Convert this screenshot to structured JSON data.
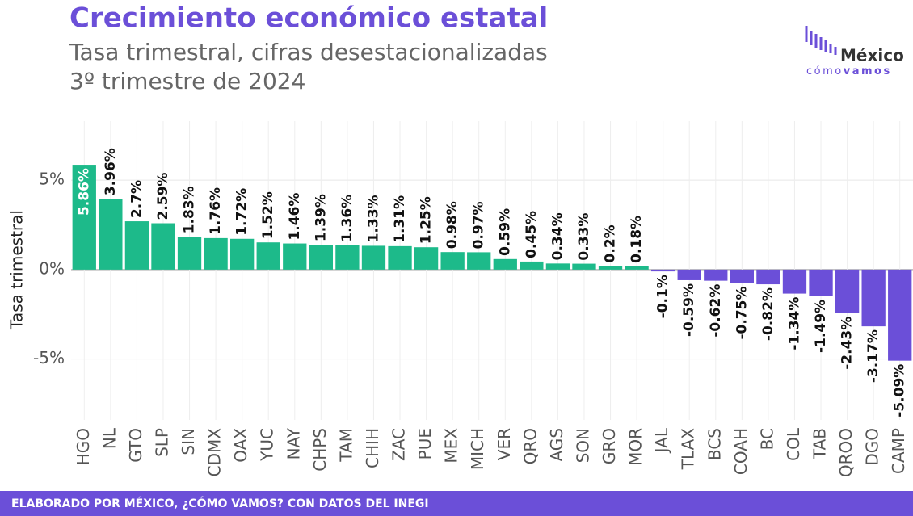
{
  "chart_data": {
    "type": "bar",
    "title": "Crecimiento económico estatal",
    "subtitle": [
      "Tasa trimestral, cifras desestacionalizadas",
      "3º trimestre de 2024"
    ],
    "y_label": "Tasa trimestral",
    "categories": [
      "HGO",
      "NL",
      "GTO",
      "SLP",
      "SIN",
      "CDMX",
      "OAX",
      "YUC",
      "NAY",
      "CHPS",
      "TAM",
      "CHIH",
      "ZAC",
      "PUE",
      "MEX",
      "MICH",
      "VER",
      "QRO",
      "AGS",
      "SON",
      "GRO",
      "MOR",
      "JAL",
      "TLAX",
      "BCS",
      "COAH",
      "BC",
      "COL",
      "TAB",
      "QROO",
      "DGO",
      "CAMP"
    ],
    "values": [
      5.86,
      3.96,
      2.7,
      2.59,
      1.83,
      1.76,
      1.72,
      1.52,
      1.46,
      1.39,
      1.36,
      1.33,
      1.31,
      1.25,
      0.98,
      0.97,
      0.59,
      0.45,
      0.34,
      0.33,
      0.2,
      0.18,
      -0.1,
      -0.59,
      -0.62,
      -0.75,
      -0.82,
      -1.34,
      -1.49,
      -2.43,
      -3.17,
      -5.09
    ],
    "value_labels": [
      "5.86%",
      "3.96%",
      "2.7%",
      "2.59%",
      "1.83%",
      "1.76%",
      "1.72%",
      "1.52%",
      "1.46%",
      "1.39%",
      "1.36%",
      "1.33%",
      "1.31%",
      "1.25%",
      "0.98%",
      "0.97%",
      "0.59%",
      "0.45%",
      "0.34%",
      "0.33%",
      "0.2%",
      "0.18%",
      "-0.1%",
      "-0.59%",
      "-0.62%",
      "-0.75%",
      "-0.82%",
      "-1.34%",
      "-1.49%",
      "-2.43%",
      "-3.17%",
      "-5.09%"
    ],
    "colors": {
      "positive": "#1dba8a",
      "negative": "#6b4fd8"
    },
    "ylim": [
      -8.4,
      8.3
    ],
    "yticks": [
      {
        "value": -5,
        "label": "-5%"
      },
      {
        "value": 0,
        "label": "0%"
      },
      {
        "value": 5,
        "label": "5%"
      }
    ],
    "grid": true,
    "logo": {
      "name": "México",
      "tagline": [
        "cómo",
        "vamos"
      ]
    },
    "source": "ELABORADO POR MÉXICO, ¿CÓMO VAMOS? CON DATOS DEL INEGI"
  }
}
